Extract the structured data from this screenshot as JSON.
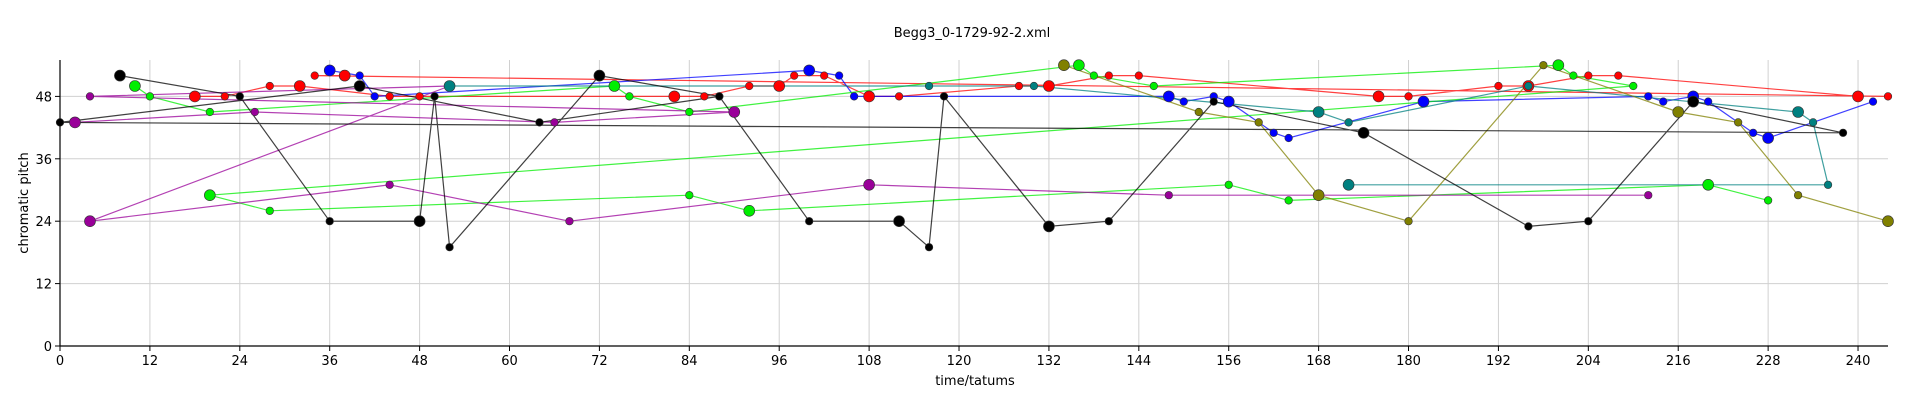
{
  "chart_data": {
    "type": "scatter",
    "title": "Begg3_0-1729-92-2.xml",
    "xlabel": "time/tatums",
    "ylabel": "chromatic pitch",
    "xlim": [
      0,
      244
    ],
    "ylim": [
      0,
      55
    ],
    "xticks": [
      0,
      12,
      24,
      36,
      48,
      60,
      72,
      84,
      96,
      108,
      120,
      132,
      144,
      156,
      168,
      180,
      192,
      204,
      216,
      228,
      240
    ],
    "yticks": [
      0,
      12,
      24,
      36,
      48
    ],
    "grid": true,
    "series": [
      {
        "color": "#ff0000",
        "size": "mixed",
        "points": [
          [
            18,
            48
          ],
          [
            22,
            48
          ],
          [
            28,
            50
          ],
          [
            32,
            50
          ],
          [
            44,
            48
          ],
          [
            48,
            48
          ],
          [
            82,
            48
          ],
          [
            86,
            48
          ],
          [
            92,
            50
          ],
          [
            96,
            50
          ],
          [
            98,
            52
          ],
          [
            102,
            52
          ],
          [
            108,
            48
          ],
          [
            112,
            48
          ],
          [
            128,
            50
          ],
          [
            132,
            50
          ],
          [
            140,
            52
          ],
          [
            144,
            52
          ],
          [
            176,
            48
          ],
          [
            180,
            48
          ],
          [
            192,
            50
          ],
          [
            196,
            50
          ],
          [
            204,
            52
          ],
          [
            208,
            52
          ],
          [
            240,
            48
          ],
          [
            244,
            48
          ],
          [
            34,
            52
          ],
          [
            38,
            52
          ]
        ]
      },
      {
        "color": "#0000ff",
        "size": "mixed",
        "points": [
          [
            36,
            53
          ],
          [
            40,
            52
          ],
          [
            42,
            48
          ],
          [
            100,
            53
          ],
          [
            104,
            52
          ],
          [
            106,
            48
          ],
          [
            148,
            48
          ],
          [
            150,
            47
          ],
          [
            154,
            48
          ],
          [
            156,
            47
          ],
          [
            162,
            41
          ],
          [
            164,
            40
          ],
          [
            182,
            47
          ],
          [
            212,
            48
          ],
          [
            214,
            47
          ],
          [
            218,
            48
          ],
          [
            220,
            47
          ],
          [
            226,
            41
          ],
          [
            228,
            40
          ],
          [
            242,
            47
          ]
        ]
      },
      {
        "color": "#00ee00",
        "size": "mixed",
        "points": [
          [
            10,
            50
          ],
          [
            12,
            48
          ],
          [
            20,
            45
          ],
          [
            74,
            50
          ],
          [
            76,
            48
          ],
          [
            84,
            45
          ],
          [
            136,
            54
          ],
          [
            138,
            52
          ],
          [
            146,
            50
          ],
          [
            200,
            54
          ],
          [
            202,
            52
          ],
          [
            210,
            50
          ],
          [
            20,
            29
          ],
          [
            28,
            26
          ],
          [
            84,
            29
          ],
          [
            92,
            26
          ],
          [
            156,
            31
          ],
          [
            164,
            28
          ],
          [
            220,
            31
          ],
          [
            228,
            28
          ]
        ]
      },
      {
        "color": "#990099",
        "size": "mixed",
        "points": [
          [
            2,
            43
          ],
          [
            26,
            45
          ],
          [
            66,
            43
          ],
          [
            90,
            45
          ],
          [
            4,
            48
          ],
          [
            52,
            50
          ],
          [
            4,
            24
          ],
          [
            44,
            31
          ],
          [
            68,
            24
          ],
          [
            108,
            31
          ],
          [
            148,
            29
          ],
          [
            212,
            29
          ]
        ]
      },
      {
        "color": "#008080",
        "size": "mixed",
        "points": [
          [
            52,
            50
          ],
          [
            116,
            50
          ],
          [
            130,
            50
          ],
          [
            168,
            45
          ],
          [
            172,
            43
          ],
          [
            196,
            50
          ],
          [
            232,
            45
          ],
          [
            234,
            43
          ],
          [
            236,
            31
          ],
          [
            172,
            31
          ]
        ]
      },
      {
        "color": "#808000",
        "size": "mixed",
        "points": [
          [
            134,
            54
          ],
          [
            152,
            45
          ],
          [
            160,
            43
          ],
          [
            168,
            29
          ],
          [
            180,
            24
          ],
          [
            198,
            54
          ],
          [
            216,
            45
          ],
          [
            224,
            43
          ],
          [
            232,
            29
          ],
          [
            244,
            24
          ]
        ]
      },
      {
        "color": "#000000",
        "size": "mixed",
        "points": [
          [
            8,
            52
          ],
          [
            24,
            48
          ],
          [
            36,
            24
          ],
          [
            48,
            24
          ],
          [
            50,
            48
          ],
          [
            52,
            19
          ],
          [
            72,
            52
          ],
          [
            88,
            48
          ],
          [
            100,
            24
          ],
          [
            112,
            24
          ],
          [
            116,
            19
          ],
          [
            118,
            48
          ],
          [
            132,
            23
          ],
          [
            140,
            24
          ],
          [
            154,
            47
          ],
          [
            174,
            41
          ],
          [
            196,
            23
          ],
          [
            204,
            24
          ],
          [
            218,
            47
          ],
          [
            238,
            41
          ],
          [
            0,
            43
          ],
          [
            40,
            50
          ],
          [
            64,
            43
          ],
          [
            88,
            48
          ]
        ]
      }
    ]
  }
}
